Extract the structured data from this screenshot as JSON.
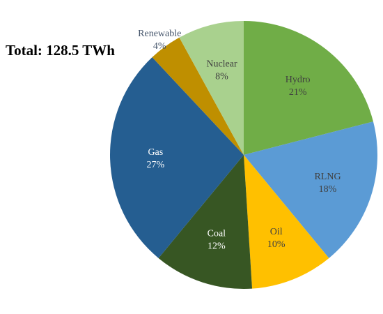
{
  "chart_data": {
    "type": "pie",
    "title": "",
    "annotation": "Total: 128.5 TWh",
    "start_angle_deg": 0,
    "direction": "clockwise",
    "slices": [
      {
        "label": "Hydro",
        "value": 21,
        "pct_label": "21%",
        "color": "#70ad47",
        "label_color": "#404040"
      },
      {
        "label": "RLNG",
        "value": 18,
        "pct_label": "18%",
        "color": "#5b9bd5",
        "label_color": "#404040"
      },
      {
        "label": "Oil",
        "value": 10,
        "pct_label": "10%",
        "color": "#ffc000",
        "label_color": "#404040"
      },
      {
        "label": "Coal",
        "value": 12,
        "pct_label": "12%",
        "color": "#375623",
        "label_color": "#ffffff"
      },
      {
        "label": "Gas",
        "value": 27,
        "pct_label": "27%",
        "color": "#255e91",
        "label_color": "#ffffff"
      },
      {
        "label": "Renewable",
        "value": 4,
        "pct_label": "4%",
        "color": "#bf8f00",
        "label_color": "#44546a"
      },
      {
        "label": "Nuclear",
        "value": 8,
        "pct_label": "8%",
        "color": "#a9d18e",
        "label_color": "#404040"
      }
    ],
    "legend": "none"
  }
}
